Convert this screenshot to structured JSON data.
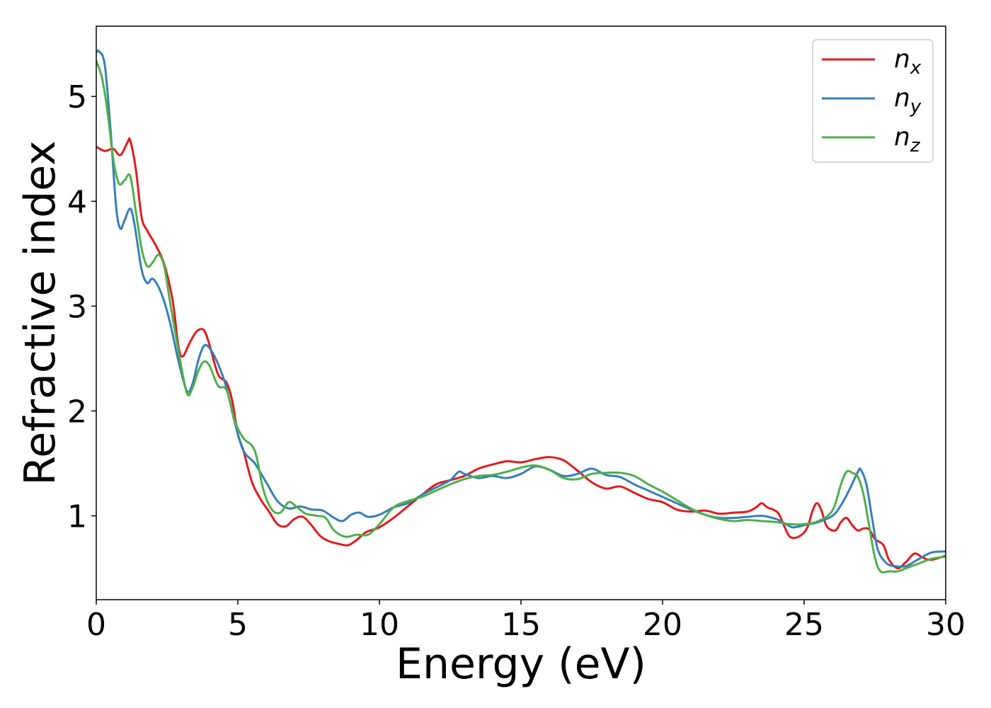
{
  "chart_data": {
    "type": "line",
    "xlabel": "Energy (eV)",
    "ylabel": "Refractive index",
    "xlim": [
      0,
      30
    ],
    "ylim": [
      0.2,
      5.67
    ],
    "xticks": [
      0,
      5,
      10,
      15,
      20,
      25,
      30
    ],
    "xtick_labels": [
      "0",
      "5",
      "10",
      "15",
      "20",
      "25",
      "30"
    ],
    "yticks": [
      1,
      2,
      3,
      4,
      5
    ],
    "ytick_labels": [
      "1",
      "2",
      "3",
      "4",
      "5"
    ],
    "grid": false,
    "legend_position": "top-right",
    "series": [
      {
        "key": "nx",
        "name": "n",
        "subscript": "x",
        "color": "#e41a1c",
        "points": [
          [
            0,
            4.52
          ],
          [
            0.3,
            4.48
          ],
          [
            0.6,
            4.5
          ],
          [
            0.85,
            4.44
          ],
          [
            1.1,
            4.56
          ],
          [
            1.2,
            4.58
          ],
          [
            1.4,
            4.3
          ],
          [
            1.6,
            3.85
          ],
          [
            1.8,
            3.72
          ],
          [
            2.1,
            3.58
          ],
          [
            2.4,
            3.4
          ],
          [
            2.7,
            3.05
          ],
          [
            2.9,
            2.62
          ],
          [
            3.05,
            2.52
          ],
          [
            3.3,
            2.65
          ],
          [
            3.55,
            2.76
          ],
          [
            3.8,
            2.77
          ],
          [
            4.0,
            2.63
          ],
          [
            4.3,
            2.35
          ],
          [
            4.6,
            2.27
          ],
          [
            4.8,
            2.1
          ],
          [
            5.0,
            1.78
          ],
          [
            5.2,
            1.62
          ],
          [
            5.5,
            1.32
          ],
          [
            5.8,
            1.16
          ],
          [
            6.1,
            1.04
          ],
          [
            6.4,
            0.92
          ],
          [
            6.7,
            0.9
          ],
          [
            7.0,
            0.97
          ],
          [
            7.3,
            0.99
          ],
          [
            7.6,
            0.91
          ],
          [
            7.9,
            0.81
          ],
          [
            8.2,
            0.76
          ],
          [
            8.6,
            0.73
          ],
          [
            8.9,
            0.72
          ],
          [
            9.2,
            0.77
          ],
          [
            9.5,
            0.84
          ],
          [
            9.8,
            0.87
          ],
          [
            10.0,
            0.89
          ],
          [
            10.5,
            0.98
          ],
          [
            11,
            1.09
          ],
          [
            11.5,
            1.2
          ],
          [
            12,
            1.3
          ],
          [
            12.5,
            1.34
          ],
          [
            13,
            1.38
          ],
          [
            13.5,
            1.45
          ],
          [
            14,
            1.49
          ],
          [
            14.5,
            1.52
          ],
          [
            15,
            1.51
          ],
          [
            15.5,
            1.54
          ],
          [
            16,
            1.56
          ],
          [
            16.5,
            1.53
          ],
          [
            17,
            1.43
          ],
          [
            17.5,
            1.32
          ],
          [
            18,
            1.26
          ],
          [
            18.5,
            1.28
          ],
          [
            19,
            1.22
          ],
          [
            19.5,
            1.16
          ],
          [
            20,
            1.13
          ],
          [
            20.5,
            1.06
          ],
          [
            21,
            1.04
          ],
          [
            21.5,
            1.05
          ],
          [
            22,
            1.02
          ],
          [
            22.5,
            1.03
          ],
          [
            23,
            1.04
          ],
          [
            23.3,
            1.08
          ],
          [
            23.5,
            1.12
          ],
          [
            23.7,
            1.08
          ],
          [
            23.9,
            1.06
          ],
          [
            24.1,
            1.02
          ],
          [
            24.3,
            0.9
          ],
          [
            24.5,
            0.8
          ],
          [
            24.8,
            0.8
          ],
          [
            25.1,
            0.88
          ],
          [
            25.3,
            1.05
          ],
          [
            25.45,
            1.12
          ],
          [
            25.6,
            1.06
          ],
          [
            25.8,
            0.9
          ],
          [
            26.1,
            0.86
          ],
          [
            26.3,
            0.94
          ],
          [
            26.5,
            0.98
          ],
          [
            26.7,
            0.91
          ],
          [
            26.9,
            0.86
          ],
          [
            27.1,
            0.88
          ],
          [
            27.3,
            0.87
          ],
          [
            27.5,
            0.78
          ],
          [
            27.8,
            0.72
          ],
          [
            28,
            0.58
          ],
          [
            28.3,
            0.5
          ],
          [
            28.6,
            0.56
          ],
          [
            28.9,
            0.64
          ],
          [
            29.2,
            0.6
          ],
          [
            29.5,
            0.58
          ],
          [
            30,
            0.62
          ]
        ]
      },
      {
        "key": "ny",
        "name": "n",
        "subscript": "y",
        "color": "#377eb8",
        "points": [
          [
            0,
            5.42
          ],
          [
            0.1,
            5.43
          ],
          [
            0.3,
            5.3
          ],
          [
            0.5,
            4.7
          ],
          [
            0.7,
            3.95
          ],
          [
            0.85,
            3.74
          ],
          [
            1.0,
            3.82
          ],
          [
            1.2,
            3.93
          ],
          [
            1.35,
            3.78
          ],
          [
            1.6,
            3.35
          ],
          [
            1.8,
            3.22
          ],
          [
            2.0,
            3.26
          ],
          [
            2.3,
            3.12
          ],
          [
            2.6,
            2.85
          ],
          [
            2.9,
            2.48
          ],
          [
            3.2,
            2.19
          ],
          [
            3.4,
            2.26
          ],
          [
            3.6,
            2.48
          ],
          [
            3.8,
            2.62
          ],
          [
            4.0,
            2.6
          ],
          [
            4.3,
            2.45
          ],
          [
            4.6,
            2.22
          ],
          [
            4.9,
            1.88
          ],
          [
            5.2,
            1.62
          ],
          [
            5.6,
            1.5
          ],
          [
            6.0,
            1.32
          ],
          [
            6.4,
            1.14
          ],
          [
            6.8,
            1.07
          ],
          [
            7.2,
            1.09
          ],
          [
            7.6,
            1.06
          ],
          [
            8.0,
            1.05
          ],
          [
            8.4,
            0.98
          ],
          [
            8.7,
            0.95
          ],
          [
            9.0,
            1.01
          ],
          [
            9.3,
            1.03
          ],
          [
            9.6,
            0.99
          ],
          [
            10.0,
            1.01
          ],
          [
            10.5,
            1.08
          ],
          [
            11,
            1.12
          ],
          [
            11.5,
            1.2
          ],
          [
            12,
            1.27
          ],
          [
            12.5,
            1.34
          ],
          [
            12.8,
            1.42
          ],
          [
            13,
            1.4
          ],
          [
            13.5,
            1.36
          ],
          [
            14,
            1.38
          ],
          [
            14.5,
            1.36
          ],
          [
            15,
            1.4
          ],
          [
            15.5,
            1.47
          ],
          [
            16,
            1.44
          ],
          [
            16.5,
            1.38
          ],
          [
            17,
            1.4
          ],
          [
            17.5,
            1.45
          ],
          [
            18,
            1.39
          ],
          [
            18.5,
            1.37
          ],
          [
            19,
            1.3
          ],
          [
            19.5,
            1.24
          ],
          [
            20,
            1.18
          ],
          [
            20.5,
            1.12
          ],
          [
            21,
            1.06
          ],
          [
            21.5,
            1.01
          ],
          [
            22,
            0.98
          ],
          [
            22.5,
            0.98
          ],
          [
            23,
            0.99
          ],
          [
            23.5,
            1.0
          ],
          [
            24,
            0.97
          ],
          [
            24.3,
            0.93
          ],
          [
            24.6,
            0.89
          ],
          [
            25,
            0.91
          ],
          [
            25.5,
            0.94
          ],
          [
            26,
            1.0
          ],
          [
            26.3,
            1.1
          ],
          [
            26.6,
            1.25
          ],
          [
            26.9,
            1.42
          ],
          [
            27.0,
            1.44
          ],
          [
            27.2,
            1.3
          ],
          [
            27.4,
            0.98
          ],
          [
            27.6,
            0.68
          ],
          [
            27.9,
            0.55
          ],
          [
            28.2,
            0.52
          ],
          [
            28.6,
            0.52
          ],
          [
            29,
            0.58
          ],
          [
            29.5,
            0.65
          ],
          [
            30,
            0.66
          ]
        ]
      },
      {
        "key": "nz",
        "name": "n",
        "subscript": "z",
        "color": "#4daf4a",
        "points": [
          [
            0,
            5.34
          ],
          [
            0.2,
            5.18
          ],
          [
            0.4,
            4.85
          ],
          [
            0.6,
            4.4
          ],
          [
            0.8,
            4.17
          ],
          [
            1.0,
            4.2
          ],
          [
            1.2,
            4.24
          ],
          [
            1.4,
            3.9
          ],
          [
            1.6,
            3.55
          ],
          [
            1.8,
            3.38
          ],
          [
            2.0,
            3.42
          ],
          [
            2.2,
            3.49
          ],
          [
            2.4,
            3.38
          ],
          [
            2.6,
            3.05
          ],
          [
            2.9,
            2.58
          ],
          [
            3.2,
            2.17
          ],
          [
            3.4,
            2.22
          ],
          [
            3.6,
            2.38
          ],
          [
            3.8,
            2.47
          ],
          [
            4.0,
            2.43
          ],
          [
            4.3,
            2.24
          ],
          [
            4.6,
            2.2
          ],
          [
            4.9,
            1.9
          ],
          [
            5.2,
            1.74
          ],
          [
            5.6,
            1.62
          ],
          [
            5.9,
            1.25
          ],
          [
            6.2,
            1.06
          ],
          [
            6.5,
            1.03
          ],
          [
            6.8,
            1.13
          ],
          [
            7.1,
            1.08
          ],
          [
            7.4,
            1.02
          ],
          [
            7.8,
            1.0
          ],
          [
            8.1,
            0.98
          ],
          [
            8.4,
            0.86
          ],
          [
            8.8,
            0.8
          ],
          [
            9.2,
            0.82
          ],
          [
            9.6,
            0.82
          ],
          [
            10.0,
            0.92
          ],
          [
            10.5,
            1.08
          ],
          [
            11,
            1.14
          ],
          [
            11.5,
            1.18
          ],
          [
            12,
            1.24
          ],
          [
            12.5,
            1.3
          ],
          [
            13,
            1.35
          ],
          [
            13.5,
            1.38
          ],
          [
            14,
            1.39
          ],
          [
            14.5,
            1.42
          ],
          [
            15,
            1.46
          ],
          [
            15.5,
            1.48
          ],
          [
            16,
            1.44
          ],
          [
            16.5,
            1.36
          ],
          [
            17,
            1.35
          ],
          [
            17.5,
            1.4
          ],
          [
            18,
            1.41
          ],
          [
            18.5,
            1.41
          ],
          [
            19,
            1.38
          ],
          [
            19.5,
            1.3
          ],
          [
            20,
            1.23
          ],
          [
            20.5,
            1.15
          ],
          [
            21,
            1.07
          ],
          [
            21.5,
            1.01
          ],
          [
            22,
            0.97
          ],
          [
            22.5,
            0.95
          ],
          [
            23,
            0.96
          ],
          [
            23.5,
            0.95
          ],
          [
            24,
            0.94
          ],
          [
            24.5,
            0.92
          ],
          [
            25,
            0.92
          ],
          [
            25.5,
            0.95
          ],
          [
            26,
            1.05
          ],
          [
            26.3,
            1.3
          ],
          [
            26.5,
            1.42
          ],
          [
            26.7,
            1.41
          ],
          [
            26.9,
            1.37
          ],
          [
            27.1,
            1.2
          ],
          [
            27.3,
            0.9
          ],
          [
            27.5,
            0.6
          ],
          [
            27.7,
            0.47
          ],
          [
            28.0,
            0.47
          ],
          [
            28.3,
            0.47
          ],
          [
            28.6,
            0.5
          ],
          [
            29,
            0.54
          ],
          [
            29.5,
            0.59
          ],
          [
            30,
            0.61
          ]
        ]
      }
    ]
  }
}
